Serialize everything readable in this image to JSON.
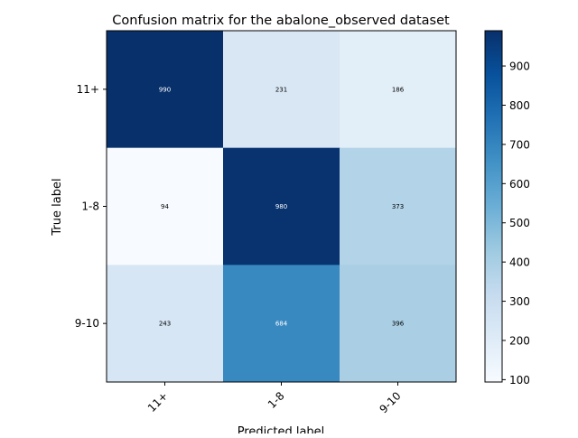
{
  "chart_data": {
    "type": "heatmap",
    "title": "Confusion matrix for the abalone_observed dataset",
    "xlabel": "Predicted label",
    "ylabel": "True label",
    "x_categories": [
      "11+",
      "1-8",
      "9-10"
    ],
    "y_categories": [
      "11+",
      "1-8",
      "9-10"
    ],
    "values": [
      [
        990,
        231,
        186
      ],
      [
        94,
        980,
        373
      ],
      [
        243,
        684,
        396
      ]
    ],
    "colormap": "Blues",
    "colorbar": {
      "range": [
        94,
        990
      ],
      "ticks": [
        "100",
        "200",
        "300",
        "400",
        "500",
        "600",
        "700",
        "800",
        "900"
      ]
    }
  }
}
